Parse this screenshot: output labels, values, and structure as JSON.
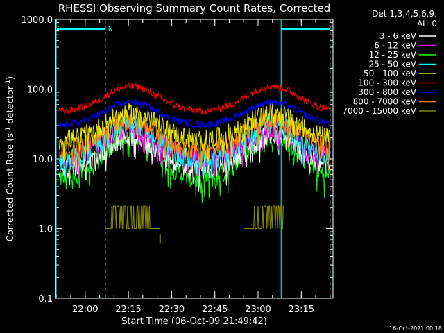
{
  "chart_data": {
    "type": "line",
    "title": "RHESSI Observing Summary Count Rates, Corrected",
    "xlabel": "Start Time (06-Oct-09 21:49:42)",
    "ylabel_main": "Corrected Count Rate (s",
    "ylabel_sup1": "-1",
    "ylabel_mid": " detector",
    "ylabel_sup2": "-1",
    "ylabel_end": ")",
    "yscale": "log",
    "ylim": [
      0.1,
      1000
    ],
    "xlim": [
      "21:49:42",
      "23:26:00"
    ],
    "y_ticks": [
      "1000.0",
      "100.0",
      "10.0",
      "1.0",
      "0.1"
    ],
    "x_ticks": [
      "22:00",
      "22:15",
      "22:30",
      "22:45",
      "23:00",
      "23:15"
    ],
    "legend_header": [
      "Det 1,3,4,5,6,9,",
      "Att 0"
    ],
    "legend_position": "right",
    "night_marker": "N",
    "timestamp": "16-Oct-2021 00:18",
    "colors": {
      "axis": "#ffffff",
      "markers": "#00ffff"
    },
    "series": [
      {
        "name": "3 - 6 keV",
        "color": "#ffffff",
        "base": 7,
        "peak": 21
      },
      {
        "name": "6 - 12 keV",
        "color": "#ff00ff",
        "base": 10,
        "peak": 27
      },
      {
        "name": "12 - 25 keV",
        "color": "#00ff00",
        "base": 4.8,
        "peak": 22
      },
      {
        "name": "25 - 50 keV",
        "color": "#00ffff",
        "base": 9,
        "peak": 32
      },
      {
        "name": "50 - 100 keV",
        "color": "#e8e800",
        "base": 18,
        "peak": 45
      },
      {
        "name": "100 - 300 keV",
        "color": "#ff0000",
        "base": 47,
        "peak": 110
      },
      {
        "name": "300 - 800 keV",
        "color": "#0000ff",
        "base": 30,
        "peak": 65
      },
      {
        "name": "800 - 7000 keV",
        "color": "#ff8800",
        "base": 13,
        "peak": 37
      },
      {
        "name": "7000 - 15000 keV",
        "color": "#808000",
        "base": 1.0,
        "peak": 2.1
      }
    ],
    "peaks": [
      "22:16",
      "23:05"
    ],
    "vertical_markers": [
      "22:07",
      "23:08",
      "23:25"
    ]
  }
}
